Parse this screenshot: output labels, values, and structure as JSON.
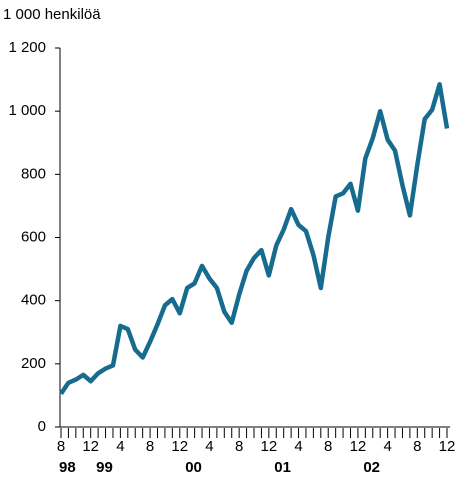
{
  "chart_data": {
    "type": "line",
    "y_label": "1 000 henkilöä",
    "categories": [
      "8",
      null,
      null,
      null,
      "12",
      null,
      null,
      null,
      "4",
      null,
      null,
      null,
      "8",
      null,
      null,
      null,
      "12",
      null,
      null,
      null,
      "4",
      null,
      null,
      null,
      "8",
      null,
      null,
      null,
      "12",
      null,
      null,
      null,
      "4",
      null,
      null,
      null,
      "8",
      null,
      null,
      null,
      "12",
      null,
      null,
      null,
      "4",
      null,
      null,
      null,
      "8",
      null,
      null,
      null,
      "12"
    ],
    "years": [
      "98",
      null,
      null,
      null,
      null,
      "99",
      null,
      null,
      null,
      null,
      null,
      null,
      null,
      null,
      null,
      null,
      null,
      "00",
      null,
      null,
      null,
      null,
      null,
      null,
      null,
      null,
      null,
      null,
      null,
      "01",
      null,
      null,
      null,
      null,
      null,
      null,
      null,
      null,
      null,
      null,
      null,
      "02",
      null,
      null,
      null,
      null,
      null,
      null,
      null,
      null,
      null,
      null,
      null
    ],
    "values": [
      105,
      140,
      150,
      165,
      145,
      170,
      185,
      195,
      320,
      310,
      245,
      220,
      270,
      325,
      385,
      405,
      360,
      440,
      455,
      510,
      470,
      440,
      365,
      330,
      420,
      495,
      535,
      560,
      480,
      575,
      625,
      690,
      640,
      620,
      545,
      440,
      600,
      730,
      740,
      770,
      685,
      850,
      915,
      1000,
      910,
      875,
      765,
      670,
      830,
      975,
      1005,
      1085,
      945
    ],
    "color": "#176b8e",
    "ylim": [
      0,
      1200
    ],
    "yticks": [
      0,
      200,
      400,
      600,
      800,
      {
        "value": 1000,
        "label": "1 000"
      },
      {
        "value": 1200,
        "label": "1 200"
      }
    ]
  }
}
